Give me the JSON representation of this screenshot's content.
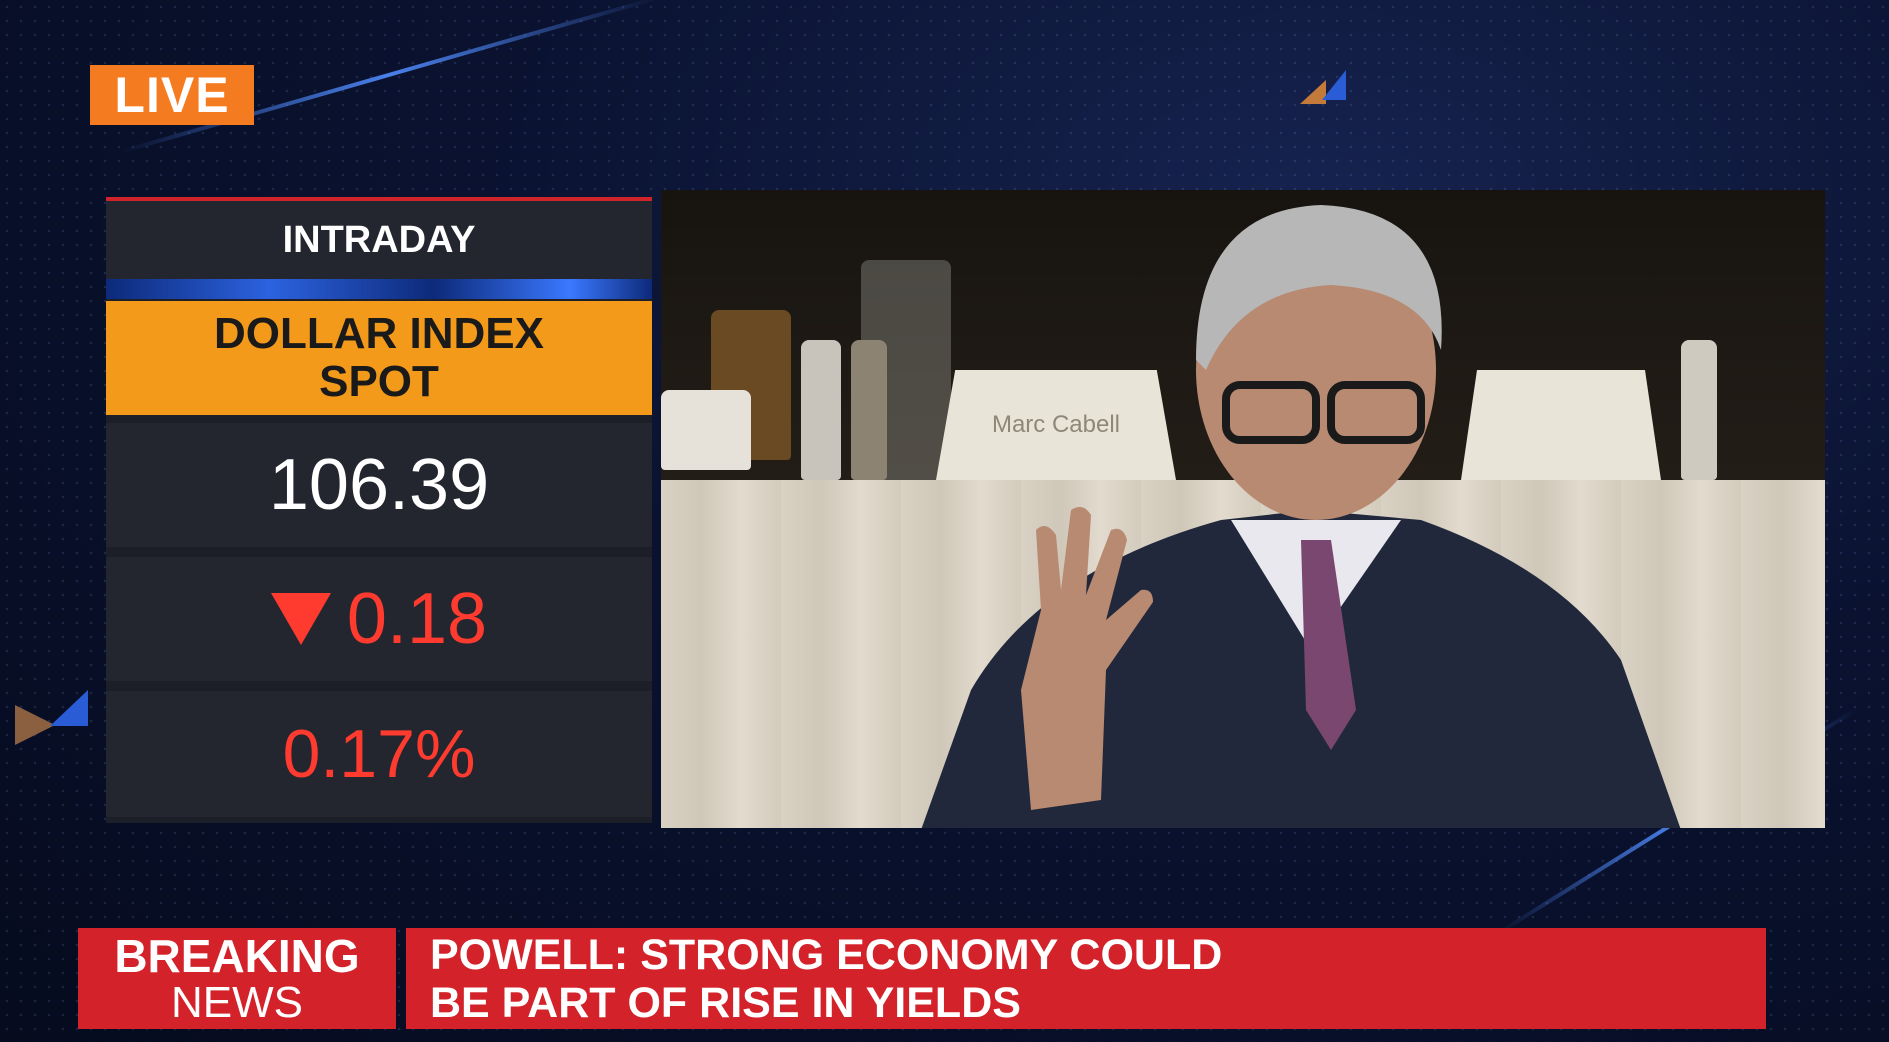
{
  "live_badge": "LIVE",
  "market": {
    "period": "INTRADAY",
    "title_line1": "DOLLAR INDEX",
    "title_line2": "SPOT",
    "value": "106.39",
    "change": "0.18",
    "change_direction": "down",
    "change_pct": "0.17%",
    "colors": {
      "title_bg": "#f39a1b",
      "negative": "#ff3b30"
    }
  },
  "video": {
    "nameplate": "Marc Cabell"
  },
  "ticker": {
    "label_line1": "BREAKING",
    "label_line2": "NEWS",
    "headline_line1": "POWELL: STRONG ECONOMY COULD",
    "headline_line2": "BE PART OF RISE IN YIELDS",
    "color": "#d3222a"
  }
}
